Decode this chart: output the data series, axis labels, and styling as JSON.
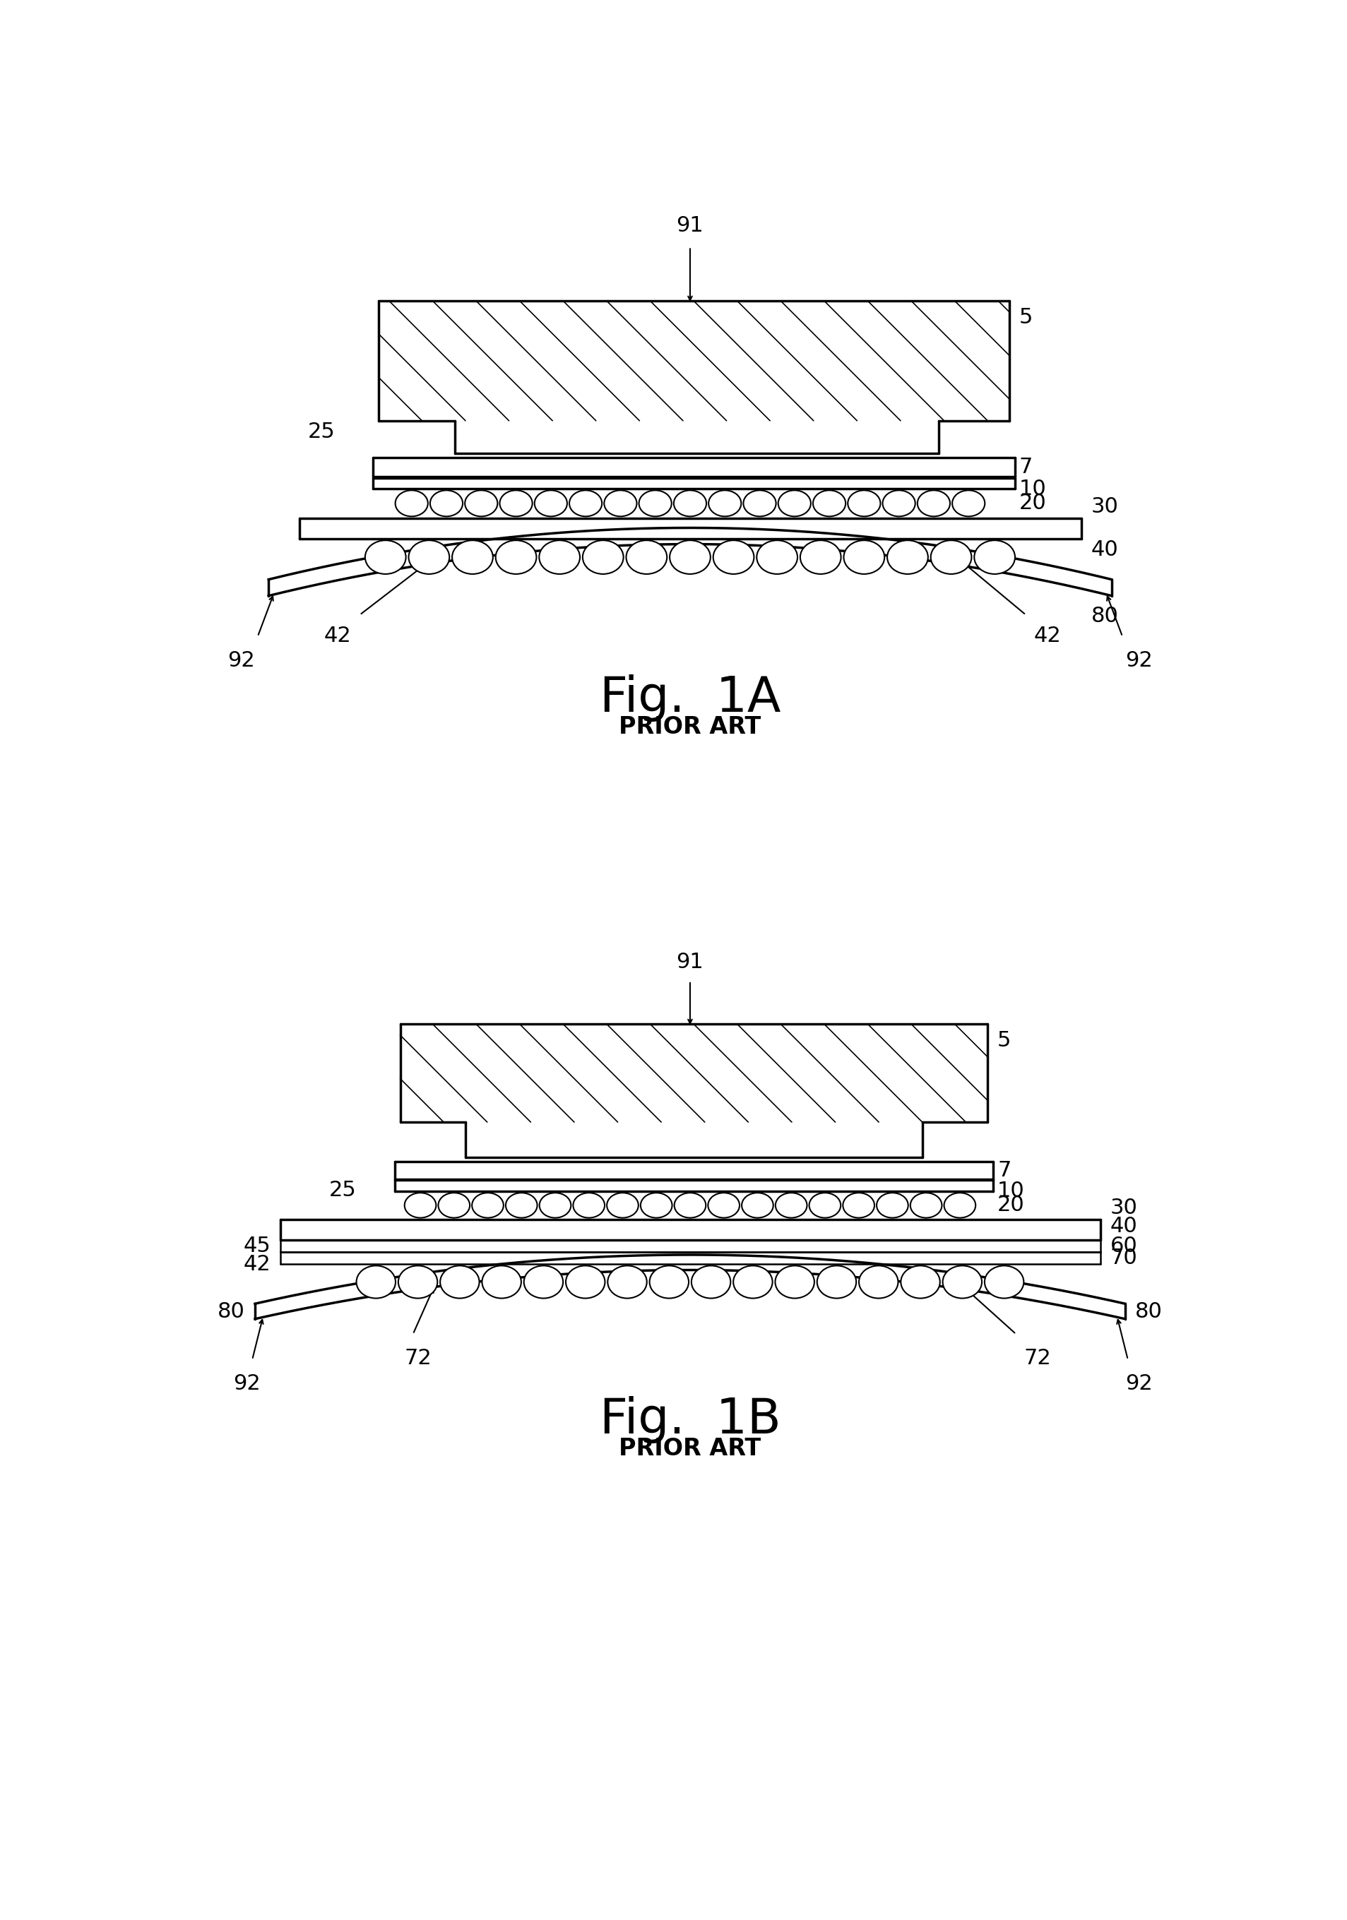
{
  "fig_width": 19.07,
  "fig_height": 27.19,
  "bg_color": "#ffffff",
  "line_color": "#000000",
  "fig1a_label": "Fig.  1A",
  "fig1b_label": "Fig.  1B",
  "prior_art": "PRIOR ART",
  "lw_thick": 2.5,
  "lw_med": 1.8,
  "lw_thin": 1.2,
  "label_fs": 22,
  "fig_label_fs": 50,
  "prior_art_fs": 24
}
